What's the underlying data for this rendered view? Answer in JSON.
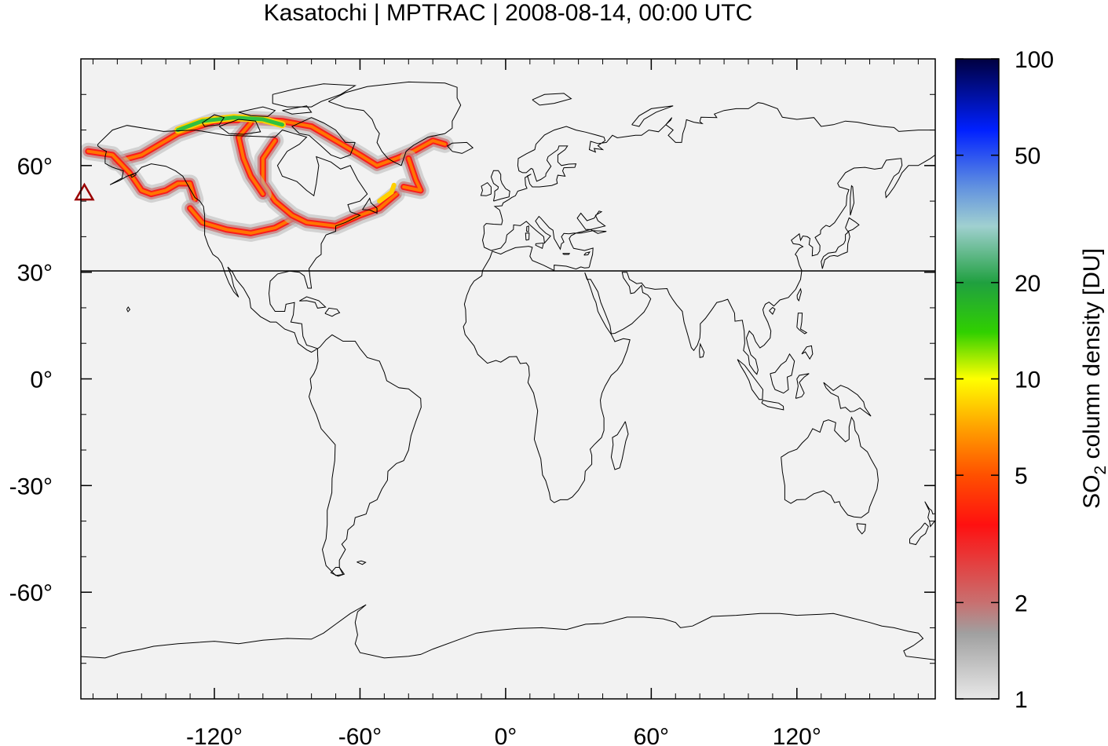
{
  "title": "Kasatochi | MPTRAC | 2008-08-14, 00:00 UTC",
  "map": {
    "projection": "equirectangular",
    "lon_range": [
      -175,
      177
    ],
    "lat_range": [
      -90,
      90
    ],
    "background_color": "#f2f2f2",
    "reference_line_lat": 30,
    "volcano": {
      "name": "Kasatochi",
      "lon": -175.5,
      "lat": 52.2,
      "marker": "triangle-outline",
      "color": "#9a0000"
    },
    "x_ticks": [
      {
        "value": -120,
        "label": "-120°"
      },
      {
        "value": -60,
        "label": "-60°"
      },
      {
        "value": 0,
        "label": "0°"
      },
      {
        "value": 60,
        "label": "60°"
      },
      {
        "value": 120,
        "label": "120°"
      }
    ],
    "y_ticks": [
      {
        "value": 60,
        "label": "60°"
      },
      {
        "value": 30,
        "label": "30°"
      },
      {
        "value": 0,
        "label": "0°"
      },
      {
        "value": -30,
        "label": "-30°"
      },
      {
        "value": -60,
        "label": "-60°"
      }
    ]
  },
  "colorbar": {
    "label_main": "SO",
    "label_sub": "2",
    "label_rest": " column density [DU]",
    "scale": "log",
    "range": [
      1,
      100
    ],
    "ticks": [
      {
        "value": 1,
        "label": "1"
      },
      {
        "value": 2,
        "label": "2"
      },
      {
        "value": 5,
        "label": "5"
      },
      {
        "value": 10,
        "label": "10"
      },
      {
        "value": 20,
        "label": "20"
      },
      {
        "value": 50,
        "label": "50"
      },
      {
        "value": 100,
        "label": "100"
      }
    ],
    "stops": [
      {
        "value": 1,
        "color": "#e8e8e8"
      },
      {
        "value": 1.6,
        "color": "#a0a0a0"
      },
      {
        "value": 2,
        "color": "#c87070"
      },
      {
        "value": 3.5,
        "color": "#ff1010"
      },
      {
        "value": 5,
        "color": "#ff5000"
      },
      {
        "value": 7,
        "color": "#ffa000"
      },
      {
        "value": 10,
        "color": "#ffff00"
      },
      {
        "value": 14,
        "color": "#30d000"
      },
      {
        "value": 20,
        "color": "#20a040"
      },
      {
        "value": 30,
        "color": "#a0d0d0"
      },
      {
        "value": 40,
        "color": "#6090e0"
      },
      {
        "value": 60,
        "color": "#0020ff"
      },
      {
        "value": 100,
        "color": "#000040"
      }
    ]
  }
}
